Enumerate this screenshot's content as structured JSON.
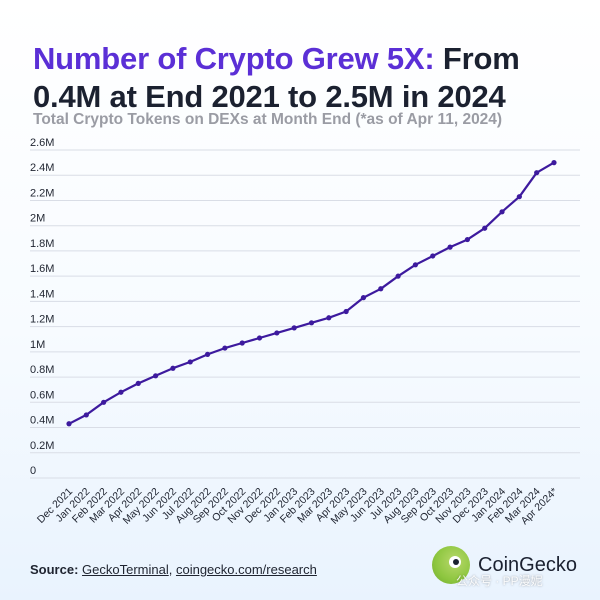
{
  "header": {
    "title_highlight": "Number of Crypto Grew 5X:",
    "title_rest": "From 0.4M at End 2021 to 2.5M in 2024",
    "subtitle": "Total Crypto Tokens on DEXs at Month End (*as of Apr 11, 2024)"
  },
  "footer": {
    "source_label": "Source:",
    "source_link_1": "GeckoTerminal",
    "source_sep": ", ",
    "source_link_2": "coingecko.com/research",
    "brand": "CoinGecko",
    "watermark": "公众号 · PP漫妮"
  },
  "colors": {
    "line": "#3d1a9e",
    "title_highlight": "#5b2fd6",
    "grid": "#d9dde6"
  },
  "chart_data": {
    "type": "line",
    "title": "Total Crypto Tokens on DEXs at Month End",
    "ylim": [
      0,
      2.6
    ],
    "yticks": [
      0,
      0.2,
      0.4,
      0.6,
      0.8,
      1,
      1.2,
      1.4,
      1.6,
      1.8,
      2,
      2.2,
      2.4,
      2.6
    ],
    "ytick_labels": [
      "0",
      "0.2M",
      "0.4M",
      "0.6M",
      "0.8M",
      "1M",
      "1.2M",
      "1.4M",
      "1.6M",
      "1.8M",
      "2M",
      "2.2M",
      "2.4M",
      "2.6M"
    ],
    "grid": true,
    "categories": [
      "Dec 2021",
      "Jan 2022",
      "Feb 2022",
      "Mar 2022",
      "Apr 2022",
      "May 2022",
      "Jun 2022",
      "Jul 2022",
      "Aug 2022",
      "Sep 2022",
      "Oct 2022",
      "Nov 2022",
      "Dec 2022",
      "Jan 2023",
      "Feb 2023",
      "Mar 2023",
      "Apr 2023",
      "May 2023",
      "Jun 2023",
      "Jul 2023",
      "Aug 2023",
      "Sep 2023",
      "Oct 2023",
      "Nov 2023",
      "Dec 2023",
      "Jan 2024",
      "Feb 2024",
      "Mar 2024",
      "Apr 2024*"
    ],
    "series": [
      {
        "values": [
          0.43,
          0.5,
          0.6,
          0.68,
          0.75,
          0.81,
          0.87,
          0.92,
          0.98,
          1.03,
          1.07,
          1.11,
          1.15,
          1.19,
          1.23,
          1.27,
          1.32,
          1.43,
          1.5,
          1.6,
          1.69,
          1.76,
          1.83,
          1.89,
          1.98,
          2.11,
          2.23,
          2.42,
          2.5
        ]
      }
    ]
  }
}
